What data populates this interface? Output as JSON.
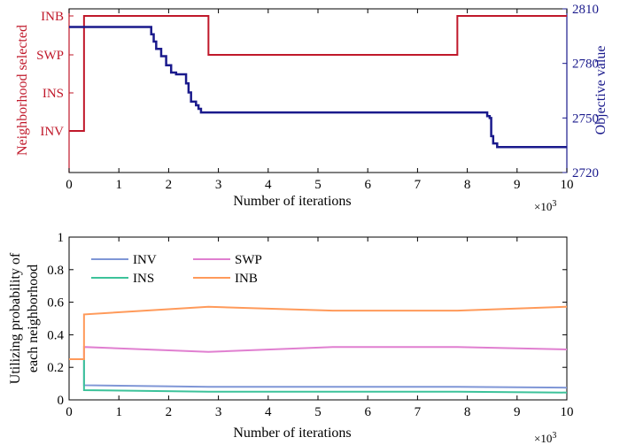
{
  "chart_data": [
    {
      "type": "line",
      "xlabel": "Number of iterations",
      "x_multiplier_label": "×10",
      "x_multiplier_exp": "3",
      "xlim": [
        0,
        10
      ],
      "x_ticks": [
        "0",
        "1",
        "2",
        "3",
        "4",
        "5",
        "6",
        "7",
        "8",
        "9",
        "10"
      ],
      "left_axis": {
        "label": "Neighborhood selected",
        "color": "#c0182a",
        "tick_labels": [
          "INV",
          "INS",
          "SWP",
          "INB"
        ]
      },
      "right_axis": {
        "label": "Objective value",
        "color": "#1a1a8c",
        "ylim": [
          2720,
          2810
        ],
        "ticks": [
          "2720",
          "2750",
          "2780",
          "2810"
        ]
      },
      "series": [
        {
          "axis": "left",
          "color": "#c0182a",
          "points": [
            [
              0,
              "INV"
            ],
            [
              0.3,
              "INV"
            ],
            [
              0.3,
              "INB"
            ],
            [
              2.8,
              "INB"
            ],
            [
              2.8,
              "SWP"
            ],
            [
              7.8,
              "SWP"
            ],
            [
              7.8,
              "INB"
            ],
            [
              10,
              "INB"
            ]
          ]
        },
        {
          "axis": "right",
          "color": "#1a1a8c",
          "points": [
            [
              0,
              2800
            ],
            [
              1.6,
              2800
            ],
            [
              1.65,
              2796
            ],
            [
              1.7,
              2792
            ],
            [
              1.75,
              2788
            ],
            [
              1.85,
              2784
            ],
            [
              1.95,
              2779
            ],
            [
              2.05,
              2775
            ],
            [
              2.15,
              2774
            ],
            [
              2.3,
              2774
            ],
            [
              2.35,
              2769
            ],
            [
              2.4,
              2764
            ],
            [
              2.45,
              2759
            ],
            [
              2.55,
              2757
            ],
            [
              2.6,
              2755
            ],
            [
              2.65,
              2753
            ],
            [
              8.0,
              2753
            ],
            [
              8.3,
              2753
            ],
            [
              8.4,
              2751
            ],
            [
              8.45,
              2750
            ],
            [
              8.48,
              2740
            ],
            [
              8.52,
              2736
            ],
            [
              8.6,
              2734
            ],
            [
              10,
              2734
            ]
          ]
        }
      ]
    },
    {
      "type": "line",
      "xlabel": "Number of iterations",
      "ylabel_line1": "Utilizing probability of",
      "ylabel_line2": "each neighborhood",
      "x_multiplier_label": "×10",
      "x_multiplier_exp": "3",
      "xlim": [
        0,
        10
      ],
      "ylim": [
        0,
        1
      ],
      "x_ticks": [
        "0",
        "1",
        "2",
        "3",
        "4",
        "5",
        "6",
        "7",
        "8",
        "9",
        "10"
      ],
      "y_ticks": [
        "0",
        "0.2",
        "0.4",
        "0.6",
        "0.8",
        "1"
      ],
      "legend_position": "top-left",
      "series": [
        {
          "name": "INV",
          "color": "#7f96d6",
          "x": [
            0,
            0.3,
            0.3,
            2.8,
            5.3,
            7.8,
            10
          ],
          "y": [
            0.25,
            0.25,
            0.09,
            0.08,
            0.08,
            0.08,
            0.075
          ]
        },
        {
          "name": "SWP",
          "color": "#e07fd0",
          "x": [
            0,
            0.3,
            0.3,
            2.8,
            5.3,
            7.8,
            10
          ],
          "y": [
            0.25,
            0.25,
            0.325,
            0.295,
            0.325,
            0.325,
            0.31
          ]
        },
        {
          "name": "INS",
          "color": "#3cc29a",
          "x": [
            0,
            0.3,
            0.3,
            2.8,
            5.3,
            7.8,
            10
          ],
          "y": [
            0.25,
            0.25,
            0.06,
            0.05,
            0.05,
            0.05,
            0.045
          ]
        },
        {
          "name": "INB",
          "color": "#ff9a5a",
          "x": [
            0,
            0.3,
            0.3,
            2.8,
            5.3,
            7.8,
            10
          ],
          "y": [
            0.25,
            0.25,
            0.525,
            0.572,
            0.548,
            0.548,
            0.572
          ]
        }
      ]
    }
  ]
}
